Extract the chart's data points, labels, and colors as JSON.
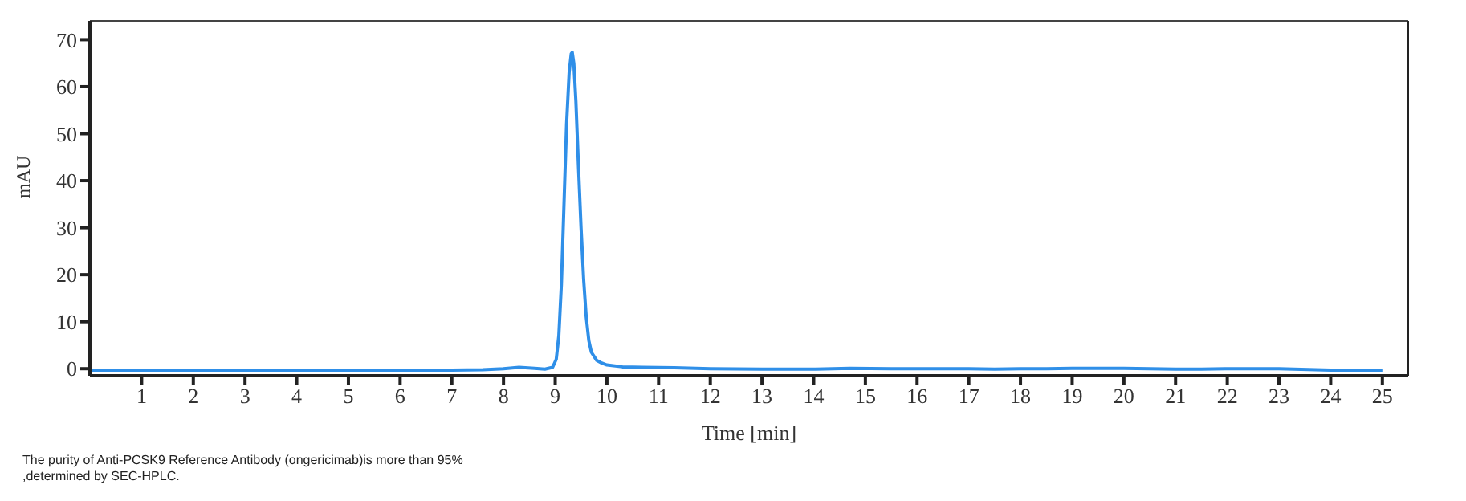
{
  "chart_data": {
    "type": "line",
    "xlabel": "Time [min]",
    "ylabel": "mAU",
    "annotations": [
      "The purity of Anti-PCSK9 Reference Antibody (ongericimab)is more than 95% ,determined by SEC-HPLC."
    ],
    "xlim": [
      0,
      25.5
    ],
    "xticks": [
      1,
      2,
      3,
      4,
      5,
      6,
      7,
      8,
      9,
      10,
      11,
      12,
      13,
      14,
      15,
      16,
      17,
      18,
      19,
      20,
      21,
      22,
      23,
      24,
      25
    ],
    "ylim": [
      -1.5,
      74
    ],
    "yticks": [
      0,
      10,
      20,
      30,
      40,
      50,
      60,
      70
    ],
    "line_style": "solid",
    "series": [
      {
        "color": "#2f8fe8",
        "x": [
          0,
          2,
          4,
          6,
          7,
          7.6,
          8.0,
          8.3,
          8.6,
          8.8,
          8.95,
          9.02,
          9.07,
          9.12,
          9.17,
          9.22,
          9.27,
          9.31,
          9.33,
          9.36,
          9.4,
          9.45,
          9.5,
          9.55,
          9.6,
          9.65,
          9.7,
          9.8,
          9.9,
          10.0,
          10.3,
          10.7,
          11.3,
          12,
          13,
          14,
          14.7,
          15.5,
          17,
          17.5,
          18,
          18.5,
          19,
          20,
          20.5,
          21,
          21.5,
          22,
          22.5,
          23,
          24,
          25
        ],
        "values": [
          -0.3,
          -0.3,
          -0.3,
          -0.3,
          -0.3,
          -0.2,
          0,
          0.3,
          0.1,
          -0.1,
          0.3,
          2,
          7,
          18,
          35,
          52,
          63,
          67,
          67.3,
          65,
          57,
          43,
          30,
          19,
          11,
          6,
          3.5,
          1.8,
          1.2,
          0.8,
          0.4,
          0.3,
          0.2,
          0,
          -0.1,
          -0.1,
          0.1,
          0,
          0,
          -0.1,
          0,
          0,
          0.1,
          0.1,
          0,
          -0.1,
          -0.1,
          0,
          0,
          0,
          -0.3,
          -0.3
        ]
      }
    ]
  }
}
